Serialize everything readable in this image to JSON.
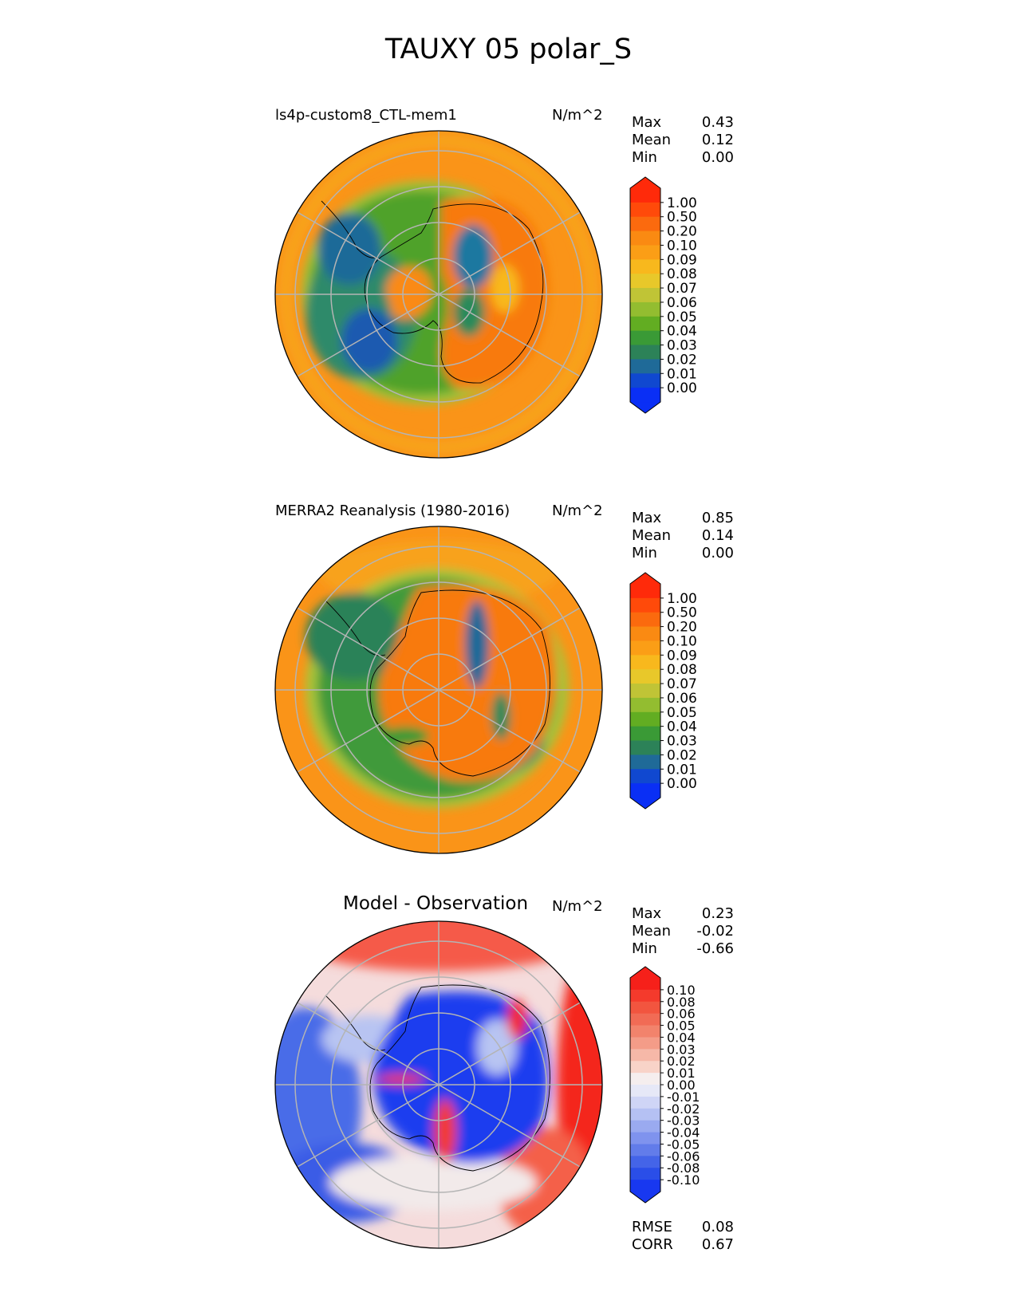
{
  "figure": {
    "title": "TAUXY 05 polar_S"
  },
  "panels": [
    {
      "id": "model",
      "title": "ls4p-custom8_CTL-mem1",
      "units": "N/m^2",
      "stats": [
        {
          "label": "Max",
          "value": "0.43"
        },
        {
          "label": "Mean",
          "value": "0.12"
        },
        {
          "label": "Min",
          "value": "0.00"
        }
      ]
    },
    {
      "id": "obs",
      "title": "MERRA2 Reanalysis (1980-2016)",
      "units": "N/m^2",
      "stats": [
        {
          "label": "Max",
          "value": "0.85"
        },
        {
          "label": "Mean",
          "value": "0.14"
        },
        {
          "label": "Min",
          "value": "0.00"
        }
      ]
    },
    {
      "id": "diff",
      "title": "Model - Observation",
      "units": "N/m^2",
      "stats": [
        {
          "label": "Max",
          "value": "0.23"
        },
        {
          "label": "Mean",
          "value": "-0.02"
        },
        {
          "label": "Min",
          "value": "-0.66"
        }
      ],
      "metrics": [
        {
          "label": "RMSE",
          "value": "0.08"
        },
        {
          "label": "CORR",
          "value": "0.67"
        }
      ]
    }
  ],
  "chart_data": [
    {
      "type": "heatmap",
      "projection": "south polar stereographic",
      "title": "ls4p-custom8_CTL-mem1",
      "units": "N/m^2",
      "colorbar": {
        "ticks": [
          "1.00",
          "0.50",
          "0.20",
          "0.10",
          "0.09",
          "0.08",
          "0.07",
          "0.06",
          "0.05",
          "0.04",
          "0.03",
          "0.02",
          "0.01",
          "0.00"
        ],
        "colors": [
          "#ff2a0a",
          "#ff4a0a",
          "#fb6a0e",
          "#fa8a12",
          "#fb9e16",
          "#f8b81d",
          "#e8c82a",
          "#c0c436",
          "#93bd30",
          "#62ad22",
          "#3a9a36",
          "#2c8258",
          "#1f6a98",
          "#1048d0",
          "#0a2ff5"
        ],
        "extend": "both"
      }
    },
    {
      "type": "heatmap",
      "projection": "south polar stereographic",
      "title": "MERRA2 Reanalysis (1980-2016)",
      "units": "N/m^2",
      "colorbar": {
        "ticks": [
          "1.00",
          "0.50",
          "0.20",
          "0.10",
          "0.09",
          "0.08",
          "0.07",
          "0.06",
          "0.05",
          "0.04",
          "0.03",
          "0.02",
          "0.01",
          "0.00"
        ],
        "colors": [
          "#ff2a0a",
          "#ff4a0a",
          "#fb6a0e",
          "#fa8a12",
          "#fb9e16",
          "#f8b81d",
          "#e8c82a",
          "#c0c436",
          "#93bd30",
          "#62ad22",
          "#3a9a36",
          "#2c8258",
          "#1f6a98",
          "#1048d0",
          "#0a2ff5"
        ],
        "extend": "both"
      }
    },
    {
      "type": "heatmap",
      "projection": "south polar stereographic",
      "title": "Model - Observation",
      "units": "N/m^2",
      "colorbar": {
        "ticks": [
          "0.10",
          "0.08",
          "0.06",
          "0.05",
          "0.04",
          "0.03",
          "0.02",
          "0.01",
          "0.00",
          "-0.01",
          "-0.02",
          "-0.03",
          "-0.04",
          "-0.05",
          "-0.06",
          "-0.08",
          "-0.10"
        ],
        "colors": [
          "#f6201a",
          "#f43a2c",
          "#f2553f",
          "#f16b55",
          "#f2836c",
          "#f49c88",
          "#f6b8a8",
          "#f8d3c8",
          "#f5eeee",
          "#e6e8f7",
          "#cfd5f6",
          "#b5c1f3",
          "#9aaaf0",
          "#7f93ee",
          "#627cea",
          "#4464e8",
          "#2a4ee8",
          "#1838f0"
        ],
        "extend": "both"
      }
    }
  ]
}
